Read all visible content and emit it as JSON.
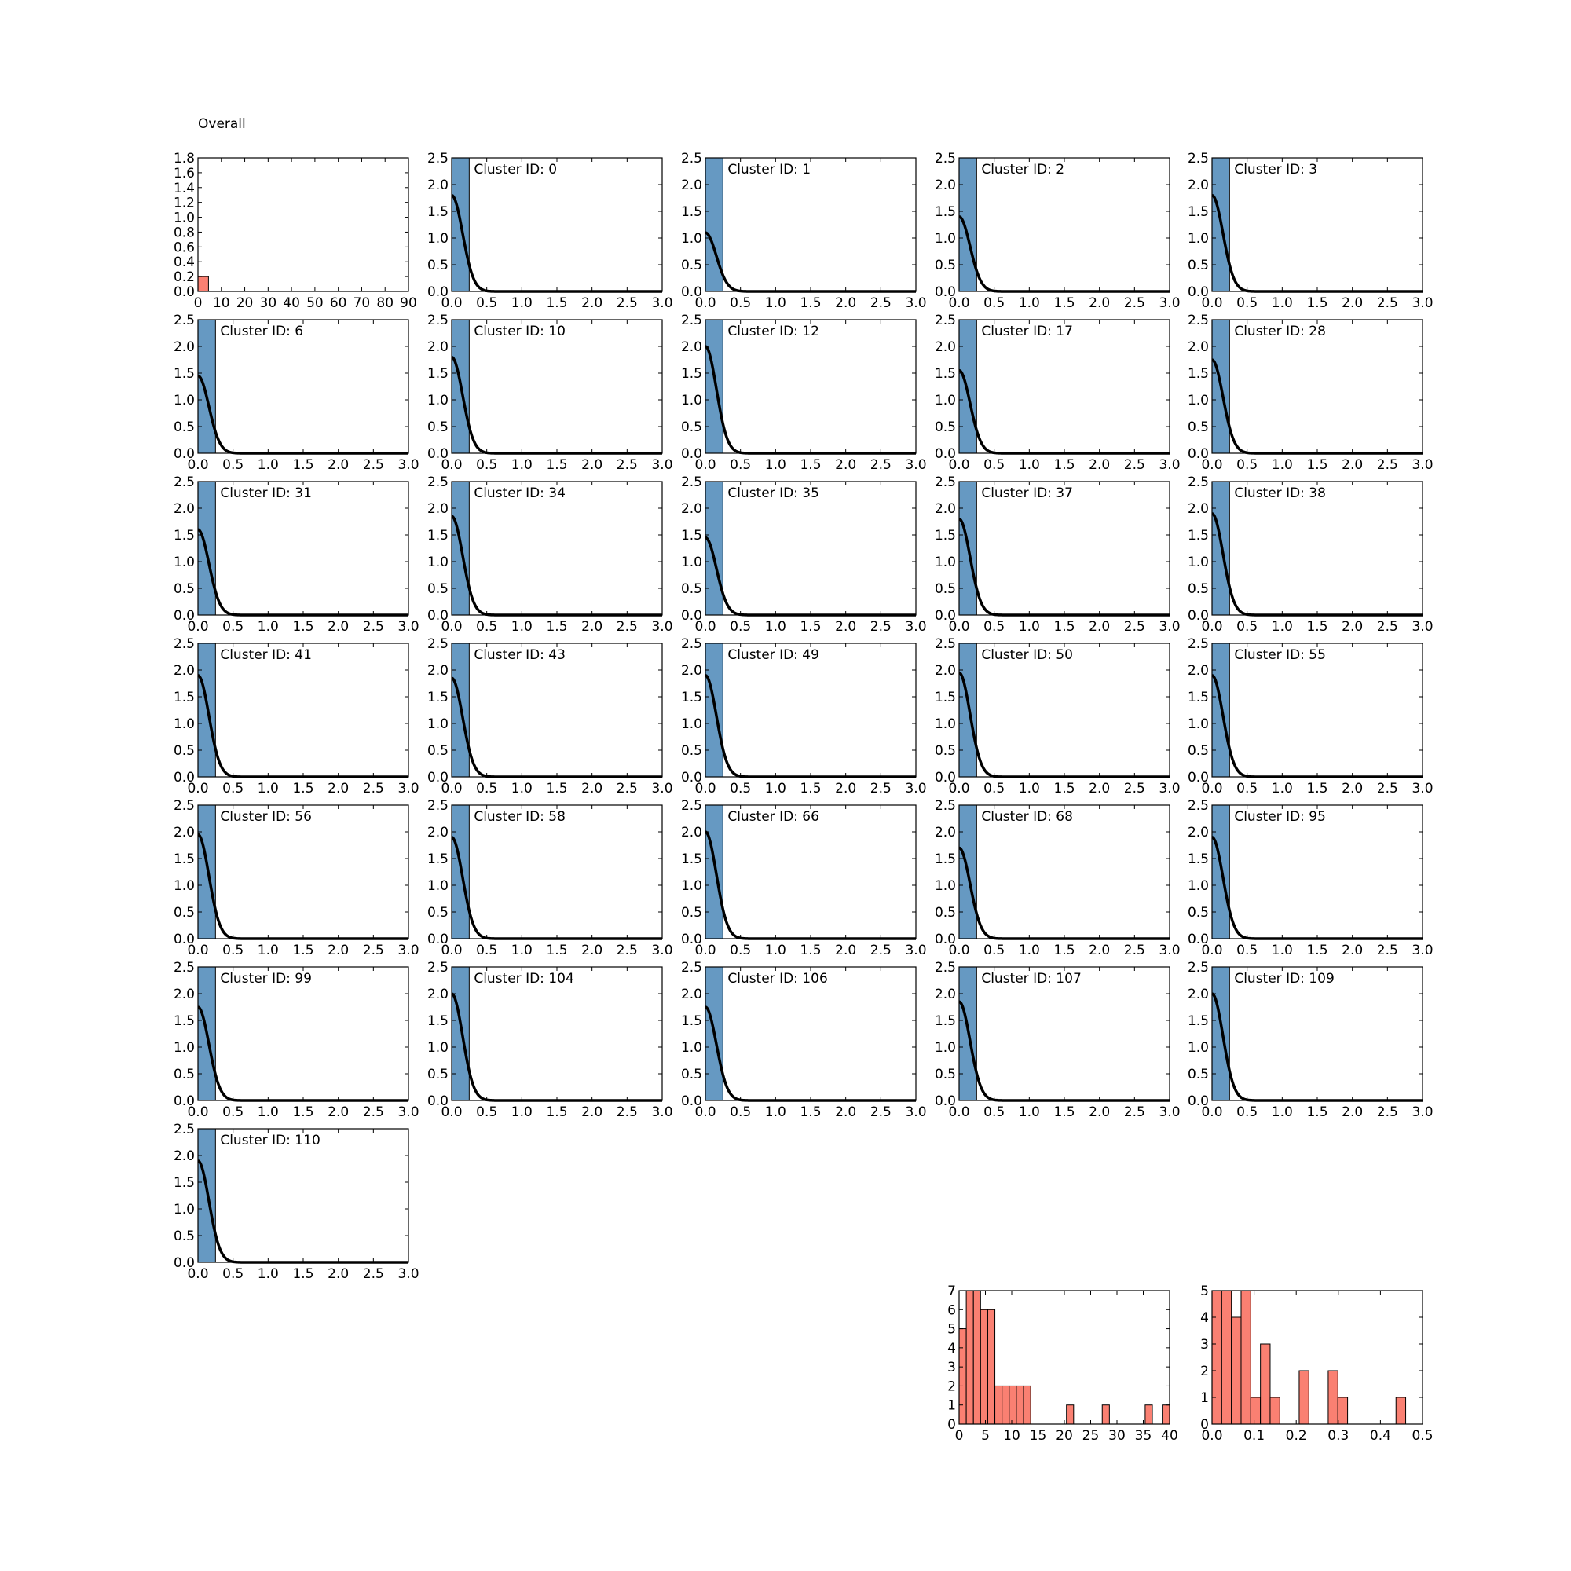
{
  "figure": {
    "title": "Overall"
  },
  "colors": {
    "bar_blue": "#6699c2",
    "bar_red": "#fa8072",
    "curve": "#000000",
    "axis": "#000000"
  },
  "chart_data": [
    {
      "type": "bar",
      "id": "overall",
      "title": "Overall",
      "bins": [
        {
          "x0": 0,
          "x1": 4.5,
          "y": 0.2
        },
        {
          "x0": 10,
          "x1": 14.5,
          "y": 0.005
        }
      ],
      "xlim": [
        0,
        90
      ],
      "ylim": [
        0,
        1.8
      ],
      "xticks": [
        "0",
        "10",
        "20",
        "30",
        "40",
        "50",
        "60",
        "70",
        "80",
        "90"
      ],
      "yticks": [
        "0.0",
        "0.2",
        "0.4",
        "0.6",
        "0.8",
        "1.0",
        "1.2",
        "1.4",
        "1.6",
        "1.8"
      ]
    },
    {
      "type": "line",
      "label": "Cluster ID: 0",
      "peak": 1.8
    },
    {
      "type": "line",
      "label": "Cluster ID: 1",
      "peak": 1.1
    },
    {
      "type": "line",
      "label": "Cluster ID: 2",
      "peak": 1.4
    },
    {
      "type": "line",
      "label": "Cluster ID: 3",
      "peak": 1.8
    },
    {
      "type": "line",
      "label": "Cluster ID: 6",
      "peak": 1.45
    },
    {
      "type": "line",
      "label": "Cluster ID: 10",
      "peak": 1.8
    },
    {
      "type": "line",
      "label": "Cluster ID: 12",
      "peak": 2.0
    },
    {
      "type": "line",
      "label": "Cluster ID: 17",
      "peak": 1.55
    },
    {
      "type": "line",
      "label": "Cluster ID: 28",
      "peak": 1.75
    },
    {
      "type": "line",
      "label": "Cluster ID: 31",
      "peak": 1.6
    },
    {
      "type": "line",
      "label": "Cluster ID: 34",
      "peak": 1.85
    },
    {
      "type": "line",
      "label": "Cluster ID: 35",
      "peak": 1.45
    },
    {
      "type": "line",
      "label": "Cluster ID: 37",
      "peak": 1.8
    },
    {
      "type": "line",
      "label": "Cluster ID: 38",
      "peak": 1.9
    },
    {
      "type": "line",
      "label": "Cluster ID: 41",
      "peak": 1.9
    },
    {
      "type": "line",
      "label": "Cluster ID: 43",
      "peak": 1.85
    },
    {
      "type": "line",
      "label": "Cluster ID: 49",
      "peak": 1.9
    },
    {
      "type": "line",
      "label": "Cluster ID: 50",
      "peak": 1.95
    },
    {
      "type": "line",
      "label": "Cluster ID: 55",
      "peak": 1.9
    },
    {
      "type": "line",
      "label": "Cluster ID: 56",
      "peak": 1.95
    },
    {
      "type": "line",
      "label": "Cluster ID: 58",
      "peak": 1.9
    },
    {
      "type": "line",
      "label": "Cluster ID: 66",
      "peak": 2.0
    },
    {
      "type": "line",
      "label": "Cluster ID: 68",
      "peak": 1.7
    },
    {
      "type": "line",
      "label": "Cluster ID: 95",
      "peak": 1.9
    },
    {
      "type": "line",
      "label": "Cluster ID: 99",
      "peak": 1.75
    },
    {
      "type": "line",
      "label": "Cluster ID: 104",
      "peak": 2.0
    },
    {
      "type": "line",
      "label": "Cluster ID: 106",
      "peak": 1.75
    },
    {
      "type": "line",
      "label": "Cluster ID: 107",
      "peak": 1.85
    },
    {
      "type": "line",
      "label": "Cluster ID: 109",
      "peak": 2.0
    },
    {
      "type": "line",
      "label": "Cluster ID: 110",
      "peak": 1.9
    },
    {
      "type": "bar",
      "id": "hist-a",
      "bins": [
        {
          "x0": 0,
          "x1": 1.36,
          "y": 5
        },
        {
          "x0": 1.36,
          "x1": 2.72,
          "y": 7
        },
        {
          "x0": 2.72,
          "x1": 4.08,
          "y": 7
        },
        {
          "x0": 4.08,
          "x1": 5.44,
          "y": 6
        },
        {
          "x0": 5.44,
          "x1": 6.8,
          "y": 6
        },
        {
          "x0": 6.8,
          "x1": 8.16,
          "y": 2
        },
        {
          "x0": 8.16,
          "x1": 9.52,
          "y": 2
        },
        {
          "x0": 9.52,
          "x1": 10.88,
          "y": 2
        },
        {
          "x0": 10.88,
          "x1": 12.24,
          "y": 2
        },
        {
          "x0": 12.24,
          "x1": 13.6,
          "y": 2
        },
        {
          "x0": 20.4,
          "x1": 21.76,
          "y": 1
        },
        {
          "x0": 27.2,
          "x1": 28.56,
          "y": 1
        },
        {
          "x0": 35.36,
          "x1": 36.72,
          "y": 1
        },
        {
          "x0": 38.6,
          "x1": 40,
          "y": 1
        }
      ],
      "xlim": [
        0,
        40
      ],
      "ylim": [
        0,
        7
      ],
      "xticks": [
        "0",
        "5",
        "10",
        "15",
        "20",
        "25",
        "30",
        "35",
        "40"
      ],
      "yticks": [
        "0",
        "1",
        "2",
        "3",
        "4",
        "5",
        "6",
        "7"
      ]
    },
    {
      "type": "bar",
      "id": "hist-b",
      "bins": [
        {
          "x0": 0,
          "x1": 0.023,
          "y": 5
        },
        {
          "x0": 0.023,
          "x1": 0.046,
          "y": 5
        },
        {
          "x0": 0.046,
          "x1": 0.069,
          "y": 4
        },
        {
          "x0": 0.069,
          "x1": 0.092,
          "y": 5
        },
        {
          "x0": 0.092,
          "x1": 0.115,
          "y": 1
        },
        {
          "x0": 0.115,
          "x1": 0.138,
          "y": 3
        },
        {
          "x0": 0.138,
          "x1": 0.161,
          "y": 1
        },
        {
          "x0": 0.207,
          "x1": 0.23,
          "y": 2
        },
        {
          "x0": 0.276,
          "x1": 0.299,
          "y": 2
        },
        {
          "x0": 0.299,
          "x1": 0.322,
          "y": 1
        },
        {
          "x0": 0.437,
          "x1": 0.46,
          "y": 1
        }
      ],
      "xlim": [
        0,
        0.5
      ],
      "ylim": [
        0,
        5
      ],
      "xticks": [
        "0.0",
        "0.1",
        "0.2",
        "0.3",
        "0.4",
        "0.5"
      ],
      "yticks": [
        "0",
        "1",
        "2",
        "3",
        "4",
        "5"
      ]
    }
  ],
  "cluster_axes": {
    "xlim": [
      0,
      3
    ],
    "ylim": [
      0,
      2.5
    ],
    "bar_width": 0.25,
    "xticks": [
      "0.0",
      "0.5",
      "1.0",
      "1.5",
      "2.0",
      "2.5",
      "3.0"
    ],
    "yticks": [
      "0.0",
      "0.5",
      "1.0",
      "1.5",
      "2.0",
      "2.5"
    ]
  }
}
